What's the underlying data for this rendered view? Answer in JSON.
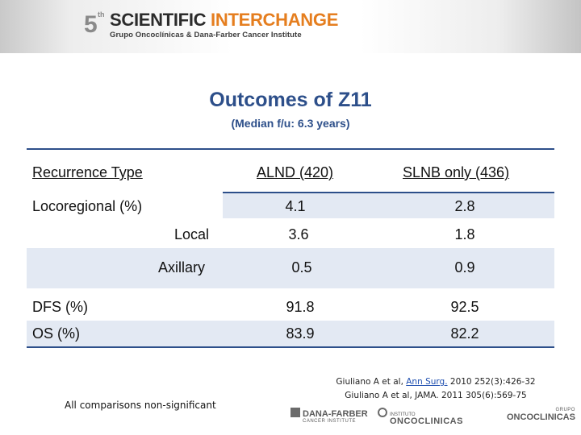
{
  "header": {
    "logo_number": "5",
    "logo_suffix": "th",
    "logo_title_a": "SCIENTIFIC ",
    "logo_title_b": "INTERCHANGE",
    "logo_subtitle": "Grupo Oncoclínicas & Dana-Farber Cancer Institute"
  },
  "slide": {
    "title": "Outcomes of Z11",
    "subtitle": "(Median f/u: 6.3 years)"
  },
  "table": {
    "headers": [
      "Recurrence Type",
      "ALND (420)",
      "SLNB only (436)"
    ],
    "rows": [
      {
        "label": "Locoregional (%)",
        "alnd": "4.1",
        "slnb": "2.8"
      },
      {
        "label": "Local",
        "alnd": "3.6",
        "slnb": "1.8"
      },
      {
        "label": "Axillary",
        "alnd": "0.5",
        "slnb": "0.9"
      },
      {
        "label": "DFS (%)",
        "alnd": "91.8",
        "slnb": "92.5"
      },
      {
        "label": "OS (%)",
        "alnd": "83.9",
        "slnb": "82.2"
      }
    ]
  },
  "footnote": "All comparisons non-significant",
  "citations": {
    "line1_pre": "Giuliano A et al, ",
    "line1_link": "Ann Surg.",
    "line1_post": " 2010 252(3):426-32",
    "line2": "Giuliano A et al, JAMA. 2011 305(6):569-75"
  },
  "footer_logos": {
    "dana_farber": "DANA-FARBER",
    "dana_farber_sub": "CANCER INSTITUTE",
    "instituto": "INSTITUTO",
    "oncoclinicas": "ONCOCLINICAS",
    "grupo": "GRUPO",
    "grupo_name": "ONCOCLINICAS"
  }
}
